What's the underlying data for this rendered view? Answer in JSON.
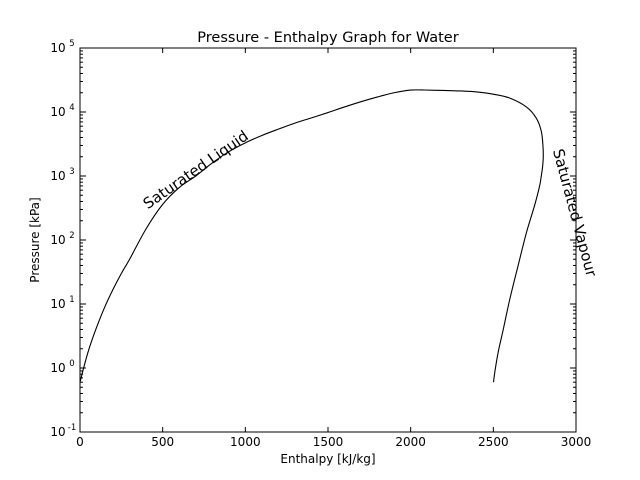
{
  "chart_data": {
    "type": "line",
    "title": "Pressure - Enthalpy Graph for Water",
    "xlabel": "Enthalpy [kJ/kg]",
    "ylabel": "Pressure [kPa]",
    "xlim": [
      0,
      3000
    ],
    "ylim": [
      0.1,
      100000
    ],
    "yscale": "log",
    "grid": false,
    "x_ticks": [
      0,
      500,
      1000,
      1500,
      2000,
      2500,
      3000
    ],
    "y_ticks": [
      {
        "base": "10",
        "exp": "-1",
        "value": 0.1
      },
      {
        "base": "10",
        "exp": "0",
        "value": 1
      },
      {
        "base": "10",
        "exp": "1",
        "value": 10
      },
      {
        "base": "10",
        "exp": "2",
        "value": 100
      },
      {
        "base": "10",
        "exp": "3",
        "value": 1000
      },
      {
        "base": "10",
        "exp": "4",
        "value": 10000
      },
      {
        "base": "10",
        "exp": "5",
        "value": 100000
      }
    ],
    "annotations": [
      {
        "text": "Saturated Liquid",
        "x": 410,
        "y": 300,
        "angle": -35
      },
      {
        "text": "Saturated Vapour",
        "x": 2860,
        "y": 2500,
        "angle": 75
      }
    ],
    "series": [
      {
        "x": [
          0,
          30,
          60,
          100,
          150,
          200,
          250,
          300,
          400,
          500,
          600,
          700,
          800,
          900,
          1000,
          1100,
          1200,
          1300,
          1400,
          1500,
          1600,
          1700,
          1800,
          1900,
          2000,
          2084
        ],
        "y": [
          0.6,
          1.2,
          2.2,
          4.3,
          9,
          17,
          30,
          50,
          150,
          360,
          660,
          1000,
          1600,
          2400,
          3300,
          4300,
          5400,
          6700,
          8100,
          9800,
          12000,
          14500,
          17200,
          20000,
          22000,
          22064
        ]
      },
      {
        "x": [
          2084,
          2200,
          2300,
          2400,
          2500,
          2600,
          2700,
          2760,
          2790,
          2800,
          2802,
          2798,
          2790,
          2780,
          2750,
          2700,
          2650,
          2600,
          2560,
          2530,
          2510,
          2501
        ],
        "y": [
          22064,
          21700,
          21300,
          20600,
          19000,
          16500,
          12000,
          8000,
          5000,
          3000,
          2000,
          1400,
          1000,
          700,
          350,
          130,
          40,
          12,
          4,
          1.8,
          0.9,
          0.6
        ]
      }
    ]
  }
}
